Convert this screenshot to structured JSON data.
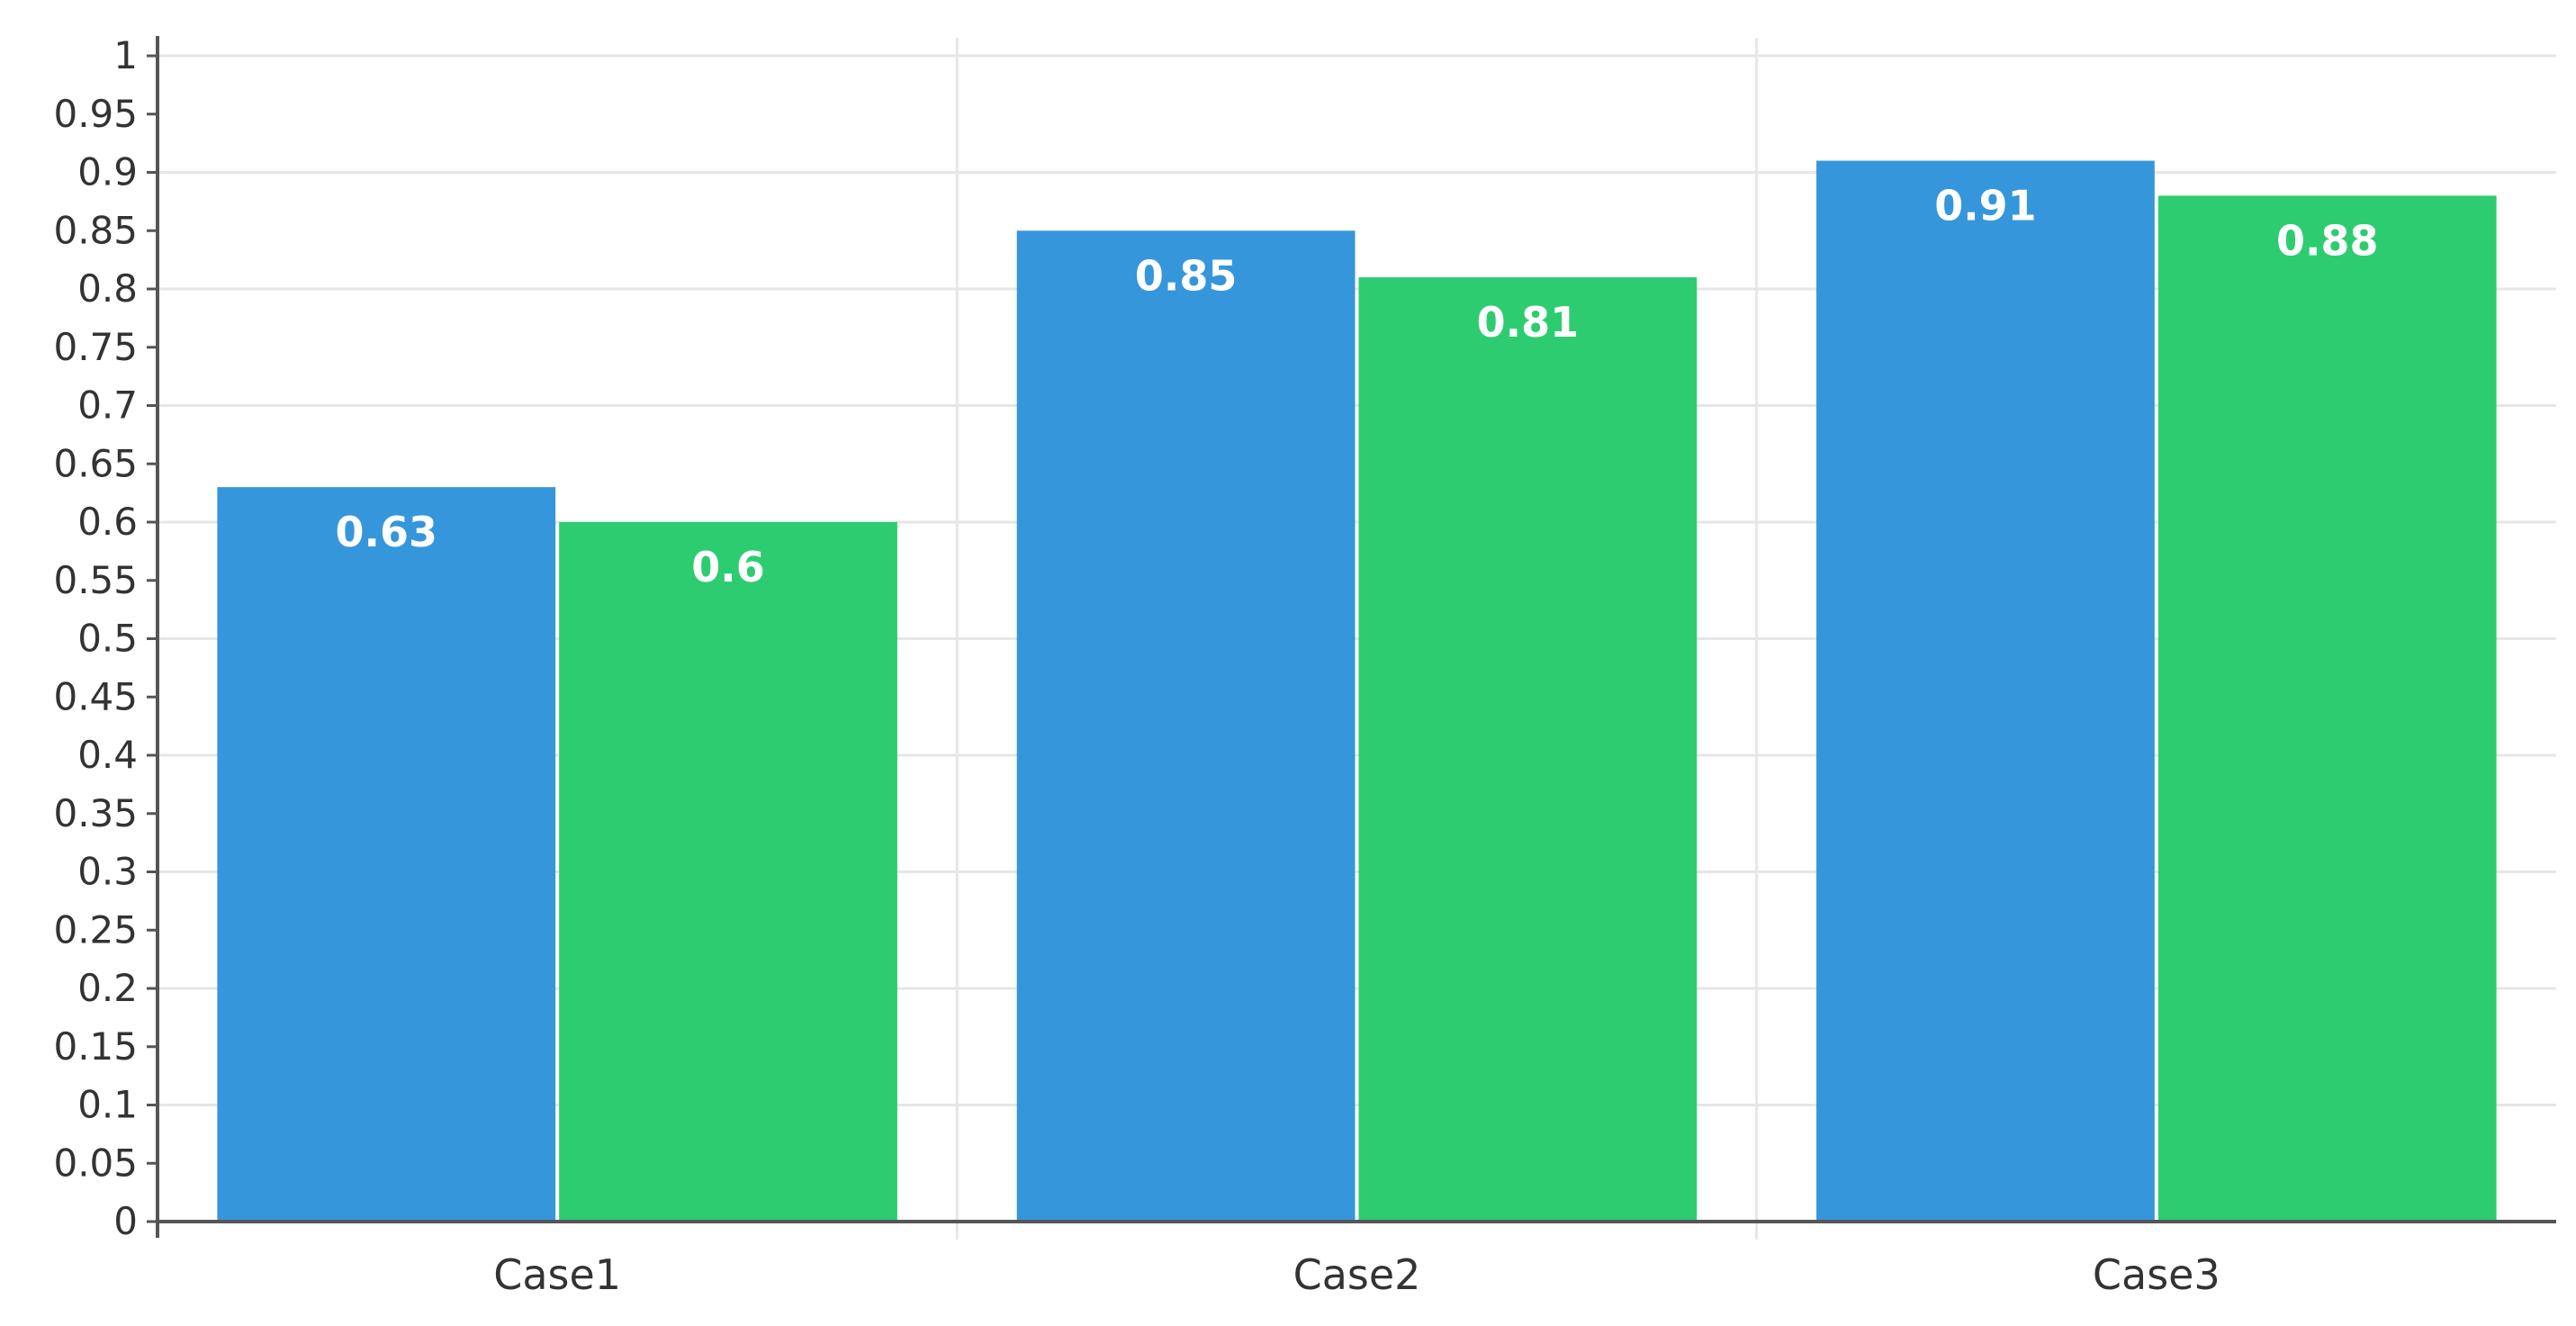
{
  "chart_data": {
    "type": "bar",
    "categories": [
      "Case1",
      "Case2",
      "Case3"
    ],
    "series": [
      {
        "values": [
          0.63,
          0.85,
          0.91
        ],
        "color": "#3596db"
      },
      {
        "values": [
          0.6,
          0.81,
          0.88
        ],
        "color": "#2ecc71"
      }
    ],
    "title": "",
    "xlabel": "",
    "ylabel": "",
    "ylim": [
      0,
      1
    ],
    "yticks": [
      "0",
      "0.05",
      "0.1",
      "0.15",
      "0.2",
      "0.25",
      "0.3",
      "0.35",
      "0.4",
      "0.45",
      "0.5",
      "0.55",
      "0.6",
      "0.65",
      "0.7",
      "0.75",
      "0.8",
      "0.85",
      "0.9",
      "0.95",
      "1"
    ],
    "grid": true,
    "data_labels": true,
    "colors": {
      "grid": "#e6e6e6",
      "axis": "#555555"
    }
  }
}
